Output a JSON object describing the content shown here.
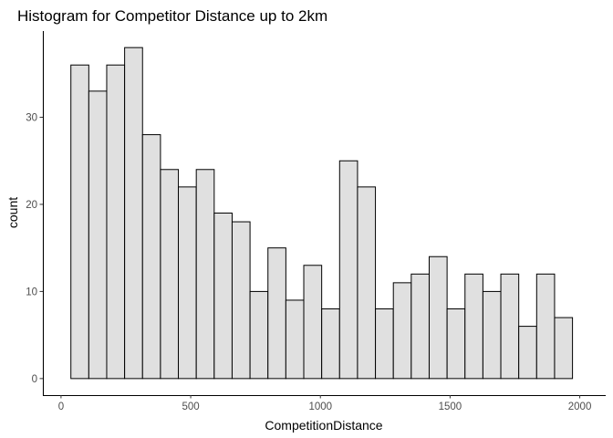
{
  "chart_data": {
    "type": "bar",
    "title": "Histogram for Competitor Distance up to 2km",
    "xlabel": "CompetitionDistance",
    "ylabel": "count",
    "xlim": [
      -70,
      2100
    ],
    "ylim": [
      -1.9,
      39.9
    ],
    "x_ticks": [
      0,
      500,
      1000,
      1500,
      2000
    ],
    "y_ticks": [
      0,
      10,
      20,
      30
    ],
    "grid": false,
    "bin_width": 69.07,
    "bins": [
      {
        "x0": 38.0,
        "count": 36
      },
      {
        "x0": 107.1,
        "count": 33
      },
      {
        "x0": 176.1,
        "count": 36
      },
      {
        "x0": 245.2,
        "count": 38
      },
      {
        "x0": 314.3,
        "count": 28
      },
      {
        "x0": 383.4,
        "count": 24
      },
      {
        "x0": 452.4,
        "count": 22
      },
      {
        "x0": 521.5,
        "count": 24
      },
      {
        "x0": 590.6,
        "count": 19
      },
      {
        "x0": 659.6,
        "count": 18
      },
      {
        "x0": 728.7,
        "count": 10
      },
      {
        "x0": 797.8,
        "count": 15
      },
      {
        "x0": 866.8,
        "count": 9
      },
      {
        "x0": 935.9,
        "count": 13
      },
      {
        "x0": 1005.0,
        "count": 8
      },
      {
        "x0": 1074.1,
        "count": 25
      },
      {
        "x0": 1143.1,
        "count": 22
      },
      {
        "x0": 1212.2,
        "count": 8
      },
      {
        "x0": 1281.3,
        "count": 11
      },
      {
        "x0": 1350.3,
        "count": 12
      },
      {
        "x0": 1419.4,
        "count": 14
      },
      {
        "x0": 1488.5,
        "count": 8
      },
      {
        "x0": 1557.5,
        "count": 12
      },
      {
        "x0": 1626.6,
        "count": 10
      },
      {
        "x0": 1695.7,
        "count": 12
      },
      {
        "x0": 1764.8,
        "count": 6
      },
      {
        "x0": 1833.8,
        "count": 12
      },
      {
        "x0": 1902.9,
        "count": 7
      }
    ],
    "colors": {
      "bar_fill": "#e0e0e0",
      "bar_stroke": "#000000",
      "axis": "#000000",
      "tick_label": "#4d4d4d"
    }
  }
}
